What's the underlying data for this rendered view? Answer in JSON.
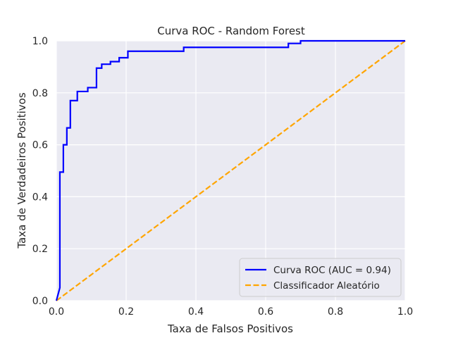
{
  "chart_data": {
    "type": "line",
    "title": "Curva ROC - Random Forest",
    "xlabel": "Taxa de Falsos Positivos",
    "ylabel": "Taxa de Verdadeiros Positivos",
    "xlim": [
      0.0,
      1.0
    ],
    "ylim": [
      0.0,
      1.0
    ],
    "xticks": [
      "0.0",
      "0.2",
      "0.4",
      "0.6",
      "0.8",
      "1.0"
    ],
    "yticks": [
      "0.0",
      "0.2",
      "0.4",
      "0.6",
      "0.8",
      "1.0"
    ],
    "grid": true,
    "legend_position": "lower-right",
    "colors": {
      "background": "#eaeaf2",
      "grid": "#ffffff",
      "roc": "#0000ff",
      "random": "#ffa500"
    },
    "series": [
      {
        "name": "Curva ROC (AUC = 0.94)",
        "style": "solid",
        "x": [
          0.0,
          0.01,
          0.01,
          0.02,
          0.02,
          0.03,
          0.03,
          0.04,
          0.04,
          0.05,
          0.05,
          0.06,
          0.06,
          0.09,
          0.09,
          0.115,
          0.115,
          0.13,
          0.13,
          0.155,
          0.155,
          0.18,
          0.18,
          0.205,
          0.205,
          0.365,
          0.365,
          0.665,
          0.665,
          0.7,
          0.7,
          1.0
        ],
        "y": [
          0.0,
          0.05,
          0.495,
          0.495,
          0.6,
          0.6,
          0.665,
          0.665,
          0.77,
          0.77,
          0.77,
          0.77,
          0.805,
          0.805,
          0.82,
          0.82,
          0.895,
          0.895,
          0.91,
          0.91,
          0.92,
          0.92,
          0.935,
          0.935,
          0.96,
          0.96,
          0.975,
          0.975,
          0.99,
          0.99,
          1.0,
          1.0
        ]
      },
      {
        "name": "Classificador Aleatório",
        "style": "dashed",
        "x": [
          0.0,
          1.0
        ],
        "y": [
          0.0,
          1.0
        ]
      }
    ]
  }
}
